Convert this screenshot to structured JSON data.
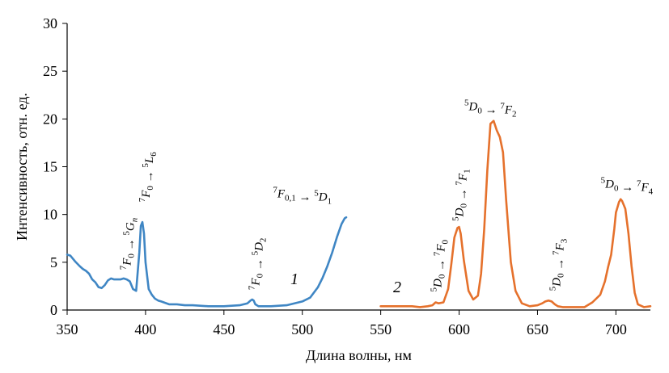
{
  "chart_data": {
    "type": "line",
    "title": "",
    "xlabel": "Длина волны, нм",
    "ylabel": "Интенсивность, отн. ед.",
    "xlim": [
      350,
      722
    ],
    "ylim": [
      0,
      30
    ],
    "xticks": [
      350,
      400,
      450,
      500,
      550,
      600,
      650,
      700
    ],
    "yticks": [
      0,
      5,
      10,
      15,
      20,
      25,
      30
    ],
    "grid": false,
    "legend": "none",
    "series": [
      {
        "color": "#3f86c4",
        "curve_label": "1",
        "x": [
          350,
          352,
          355,
          358,
          360,
          362,
          364,
          366,
          368,
          370,
          372,
          374,
          376,
          378,
          380,
          382,
          384,
          386,
          388,
          390,
          392,
          394,
          396,
          397,
          398,
          399,
          400,
          402,
          404,
          406,
          408,
          410,
          415,
          420,
          425,
          430,
          440,
          450,
          460,
          465,
          467,
          468,
          469,
          470,
          472,
          475,
          480,
          490,
          500,
          505,
          510,
          513,
          516,
          519,
          522,
          525,
          527,
          528
        ],
        "y": [
          5.8,
          5.7,
          5.1,
          4.6,
          4.3,
          4.1,
          3.8,
          3.2,
          2.9,
          2.4,
          2.3,
          2.6,
          3.1,
          3.3,
          3.2,
          3.2,
          3.2,
          3.3,
          3.2,
          3.0,
          2.2,
          2.0,
          6.0,
          8.8,
          9.2,
          8.0,
          5.0,
          2.2,
          1.6,
          1.2,
          1.0,
          0.9,
          0.6,
          0.6,
          0.5,
          0.5,
          0.4,
          0.4,
          0.5,
          0.7,
          1.0,
          1.1,
          1.0,
          0.6,
          0.4,
          0.4,
          0.4,
          0.5,
          0.9,
          1.3,
          2.4,
          3.4,
          4.6,
          6.0,
          7.6,
          9.0,
          9.6,
          9.7
        ]
      },
      {
        "color": "#e5712c",
        "curve_label": "2",
        "x": [
          550,
          560,
          570,
          575,
          580,
          583,
          585,
          587,
          590,
          593,
          595,
          597,
          599,
          600,
          601,
          603,
          606,
          609,
          612,
          614,
          616,
          618,
          620,
          622,
          624,
          626,
          628,
          630,
          633,
          636,
          640,
          645,
          650,
          653,
          655,
          657,
          659,
          661,
          663,
          666,
          670,
          680,
          685,
          690,
          693,
          695,
          697,
          699,
          700,
          702,
          703,
          704,
          706,
          708,
          710,
          712,
          714,
          718,
          722
        ],
        "y": [
          0.4,
          0.4,
          0.4,
          0.3,
          0.4,
          0.5,
          0.8,
          0.7,
          0.8,
          2.2,
          4.8,
          7.6,
          8.6,
          8.7,
          8.0,
          5.2,
          2.0,
          1.1,
          1.5,
          3.8,
          8.5,
          14.6,
          19.5,
          19.8,
          18.8,
          18.1,
          16.5,
          11.5,
          5.0,
          2.0,
          0.7,
          0.4,
          0.5,
          0.7,
          0.9,
          1.0,
          0.9,
          0.6,
          0.4,
          0.3,
          0.3,
          0.3,
          0.8,
          1.6,
          3.0,
          4.5,
          5.8,
          8.5,
          10.2,
          11.3,
          11.6,
          11.4,
          10.6,
          8.0,
          4.6,
          1.8,
          0.6,
          0.3,
          0.4
        ]
      }
    ],
    "annotations": [
      {
        "text": "7F0 → 5Gn",
        "x": 388,
        "y": 4.2,
        "rotate": -90
      },
      {
        "text": "7F0 → 5L6",
        "x": 400,
        "y": 11.3,
        "rotate": -90
      },
      {
        "text": "7F0 → 5D2",
        "x": 470,
        "y": 2.1,
        "rotate": -90
      },
      {
        "text": "7F0,1 → 5D1",
        "x": 500,
        "y": 11.8,
        "rotate": 0
      },
      {
        "text": "5D0 → 7F0",
        "x": 586,
        "y": 1.9,
        "rotate": -90
      },
      {
        "text": "5D0 → 7F1",
        "x": 600,
        "y": 9.3,
        "rotate": -90
      },
      {
        "text": "5D0 → 7F2",
        "x": 620,
        "y": 20.9,
        "rotate": 0
      },
      {
        "text": "5D0 → 7F3",
        "x": 662,
        "y": 2.0,
        "rotate": -90
      },
      {
        "text": "5D0 → 7F4",
        "x": 707,
        "y": 12.8,
        "rotate": 0
      }
    ]
  }
}
